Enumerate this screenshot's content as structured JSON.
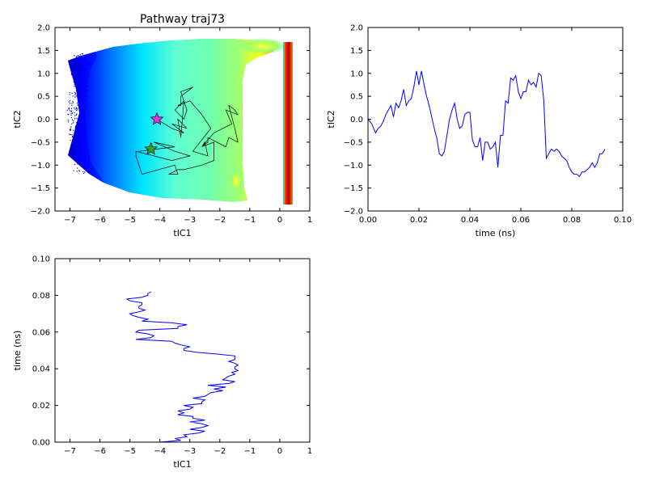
{
  "chart_data": [
    {
      "type": "heatmap",
      "title": "Pathway traj73",
      "xlabel": "tIC1",
      "ylabel": "tIC2",
      "xlim": [
        -7.5,
        1
      ],
      "ylim": [
        -2,
        2
      ],
      "xticks": [
        "−7",
        "−6",
        "−5",
        "−4",
        "−3",
        "−2",
        "−1",
        "0",
        "1"
      ],
      "xtick_values": [
        -7,
        -6,
        -5,
        -4,
        -3,
        -2,
        -1,
        0,
        1
      ],
      "yticks": [
        "−2.0",
        "−1.5",
        "−1.0",
        "−0.5",
        "0.0",
        "0.5",
        "1.0",
        "1.5",
        "2.0"
      ],
      "ytick_values": [
        -2,
        -1.5,
        -1,
        -0.5,
        0,
        0.5,
        1,
        1.5,
        2
      ],
      "colormap": "jet (blue low to red high), high density band near tIC1 = 0.3",
      "pathway": {
        "color": "#000000",
        "tIC1": [
          -4.1,
          -3.6,
          -3.2,
          -3.6,
          -3.1,
          -3.4,
          -3.3,
          -3.2,
          -3.5,
          -3.2,
          -3.1,
          -3.3,
          -2.9,
          -3.3,
          -3.3,
          -3.4,
          -3.0,
          -2.6,
          -2.3,
          -2.9,
          -2.4,
          -2.5,
          -2.6,
          -2.2,
          -1.6,
          -1.8,
          -1.4,
          -1.5,
          -1.7,
          -1.5,
          -1.4,
          -1.7,
          -1.8,
          -2.4,
          -2.4,
          -2.6,
          -2.2,
          -2.2,
          -2.6,
          -2.6,
          -3.2,
          -3.4,
          -3.7,
          -3.4,
          -3.5,
          -4.6,
          -4.8,
          -4.8,
          -3.6,
          -3.0,
          -3.5,
          -4.2,
          -3.5,
          -4.7
        ],
        "tIC2": [
          0.0,
          -0.2,
          -0.3,
          -0.1,
          -0.2,
          0.0,
          -0.4,
          0.4,
          0.2,
          0.0,
          0.2,
          0.6,
          0.7,
          0.5,
          0.3,
          0.3,
          0.4,
          0.1,
          -0.2,
          -0.7,
          -0.8,
          -0.5,
          -0.6,
          -0.3,
          -0.1,
          0.2,
          0.1,
          0.2,
          0.3,
          -0.2,
          -0.5,
          -0.4,
          -0.6,
          -0.4,
          -0.5,
          -0.6,
          -0.5,
          -0.9,
          -1.0,
          -1.0,
          -1.1,
          -1.1,
          -1.2,
          -1.2,
          -1.0,
          -1.2,
          -0.8,
          -0.7,
          -0.9,
          -0.8,
          -0.7,
          -0.5,
          -0.6,
          -0.7
        ]
      },
      "markers": [
        {
          "name": "start",
          "tIC1": -4.1,
          "tIC2": 0.0,
          "color": "#dd33dd",
          "shape": "star"
        },
        {
          "name": "end",
          "tIC1": -4.3,
          "tIC2": -0.65,
          "color": "#339933",
          "shape": "star"
        }
      ]
    },
    {
      "type": "line",
      "xlabel": "time (ns)",
      "ylabel": "tIC2",
      "xlim": [
        0,
        0.1
      ],
      "ylim": [
        -2,
        2
      ],
      "xticks": [
        "0.00",
        "0.02",
        "0.04",
        "0.06",
        "0.08",
        "0.10"
      ],
      "xtick_values": [
        0,
        0.02,
        0.04,
        0.06,
        0.08,
        0.1
      ],
      "yticks": [
        "−2.0",
        "−1.5",
        "−1.0",
        "−0.5",
        "0.0",
        "0.5",
        "1.0",
        "1.5",
        "2.0"
      ],
      "ytick_values": [
        -2,
        -1.5,
        -1,
        -0.5,
        0,
        0.5,
        1,
        1.5,
        2
      ],
      "color": "#0000ff",
      "x": [
        0.0,
        0.0015,
        0.003,
        0.004,
        0.005,
        0.006,
        0.007,
        0.008,
        0.009,
        0.01,
        0.011,
        0.012,
        0.013,
        0.014,
        0.015,
        0.016,
        0.017,
        0.018,
        0.019,
        0.02,
        0.021,
        0.022,
        0.023,
        0.024,
        0.025,
        0.026,
        0.027,
        0.028,
        0.029,
        0.03,
        0.031,
        0.032,
        0.033,
        0.034,
        0.035,
        0.036,
        0.037,
        0.038,
        0.039,
        0.04,
        0.041,
        0.042,
        0.043,
        0.044,
        0.045,
        0.046,
        0.047,
        0.048,
        0.049,
        0.05,
        0.051,
        0.052,
        0.053,
        0.054,
        0.055,
        0.056,
        0.057,
        0.058,
        0.059,
        0.06,
        0.061,
        0.062,
        0.063,
        0.064,
        0.065,
        0.066,
        0.067,
        0.068,
        0.069,
        0.07,
        0.071,
        0.072,
        0.073,
        0.074,
        0.075,
        0.076,
        0.077,
        0.078,
        0.079,
        0.08,
        0.081,
        0.082,
        0.083,
        0.084,
        0.085,
        0.086,
        0.087,
        0.088,
        0.089,
        0.09,
        0.091,
        0.092,
        0.093
      ],
      "y": [
        0.0,
        -0.1,
        -0.3,
        -0.2,
        -0.15,
        -0.05,
        0.1,
        0.2,
        0.3,
        0.05,
        0.35,
        0.25,
        0.4,
        0.65,
        0.3,
        0.4,
        0.45,
        0.7,
        1.05,
        0.75,
        1.05,
        0.75,
        0.5,
        0.3,
        0.05,
        -0.2,
        -0.4,
        -0.75,
        -0.8,
        -0.7,
        -0.35,
        0.0,
        0.2,
        0.35,
        0.0,
        -0.2,
        -0.15,
        0.1,
        0.15,
        0.15,
        -0.45,
        -0.6,
        -0.6,
        -0.4,
        -0.9,
        -0.5,
        -0.5,
        -0.65,
        -0.6,
        -0.5,
        -1.05,
        -0.35,
        -0.35,
        0.4,
        0.35,
        0.9,
        0.85,
        0.95,
        0.6,
        0.45,
        0.6,
        0.6,
        0.85,
        0.75,
        0.8,
        0.7,
        1.0,
        0.95,
        0.4,
        -0.85,
        -0.75,
        -0.65,
        -0.7,
        -0.65,
        -0.7,
        -0.8,
        -0.85,
        -0.9,
        -1.05,
        -1.15,
        -1.2,
        -1.2,
        -1.25,
        -1.15,
        -1.15,
        -1.1,
        -1.05,
        -0.95,
        -1.05,
        -0.95,
        -0.75,
        -0.75,
        -0.65
      ]
    },
    {
      "type": "line",
      "xlabel": "tIC1",
      "ylabel": "time (ns)",
      "xlim": [
        -7.5,
        1
      ],
      "ylim": [
        0,
        0.1
      ],
      "xticks": [
        "−7",
        "−6",
        "−5",
        "−4",
        "−3",
        "−2",
        "−1",
        "0",
        "1"
      ],
      "xtick_values": [
        -7,
        -6,
        -5,
        -4,
        -3,
        -2,
        -1,
        0,
        1
      ],
      "yticks": [
        "0.00",
        "0.02",
        "0.04",
        "0.06",
        "0.08",
        "0.10"
      ],
      "ytick_values": [
        0,
        0.02,
        0.04,
        0.06,
        0.08,
        0.1
      ],
      "color": "#0000ff",
      "tIC1": [
        -4.0,
        -3.3,
        -3.5,
        -3.1,
        -3.2,
        -2.7,
        -2.5,
        -3.0,
        -2.6,
        -2.4,
        -2.6,
        -3.0,
        -2.5,
        -2.9,
        -2.9,
        -3.4,
        -3.2,
        -3.4,
        -3.0,
        -2.9,
        -3.2,
        -2.6,
        -2.6,
        -2.5,
        -2.9,
        -2.5,
        -2.4,
        -2.3,
        -1.9,
        -2.2,
        -1.8,
        -2.4,
        -1.7,
        -1.5,
        -1.9,
        -1.8,
        -1.7,
        -1.5,
        -1.6,
        -1.4,
        -1.5,
        -1.5,
        -1.4,
        -1.5,
        -1.7,
        -1.5,
        -1.5,
        -1.5,
        -2.1,
        -2.8,
        -3.2,
        -3.2,
        -3.0,
        -3.3,
        -3.5,
        -3.6,
        -4.8,
        -4.3,
        -4.2,
        -4.4,
        -4.8,
        -4.7,
        -3.4,
        -3.4,
        -3.1,
        -3.6,
        -4.6,
        -4.4,
        -4.7,
        -4.9,
        -5.0,
        -4.7,
        -4.5,
        -4.7,
        -4.7,
        -4.6,
        -4.6,
        -5.0,
        -5.1,
        -4.6,
        -4.4,
        -4.4,
        -4.3
      ],
      "time": [
        0.0,
        0.001,
        0.002,
        0.003,
        0.004,
        0.005,
        0.006,
        0.007,
        0.008,
        0.009,
        0.01,
        0.011,
        0.012,
        0.013,
        0.014,
        0.015,
        0.016,
        0.017,
        0.018,
        0.019,
        0.02,
        0.021,
        0.022,
        0.023,
        0.024,
        0.025,
        0.026,
        0.027,
        0.028,
        0.029,
        0.03,
        0.031,
        0.032,
        0.033,
        0.034,
        0.035,
        0.036,
        0.037,
        0.038,
        0.039,
        0.04,
        0.041,
        0.042,
        0.043,
        0.044,
        0.045,
        0.046,
        0.047,
        0.048,
        0.049,
        0.05,
        0.051,
        0.052,
        0.053,
        0.054,
        0.055,
        0.056,
        0.057,
        0.058,
        0.059,
        0.06,
        0.061,
        0.062,
        0.063,
        0.064,
        0.065,
        0.066,
        0.067,
        0.068,
        0.069,
        0.07,
        0.071,
        0.072,
        0.073,
        0.074,
        0.075,
        0.076,
        0.077,
        0.078,
        0.079,
        0.08,
        0.081,
        0.082
      ]
    }
  ]
}
